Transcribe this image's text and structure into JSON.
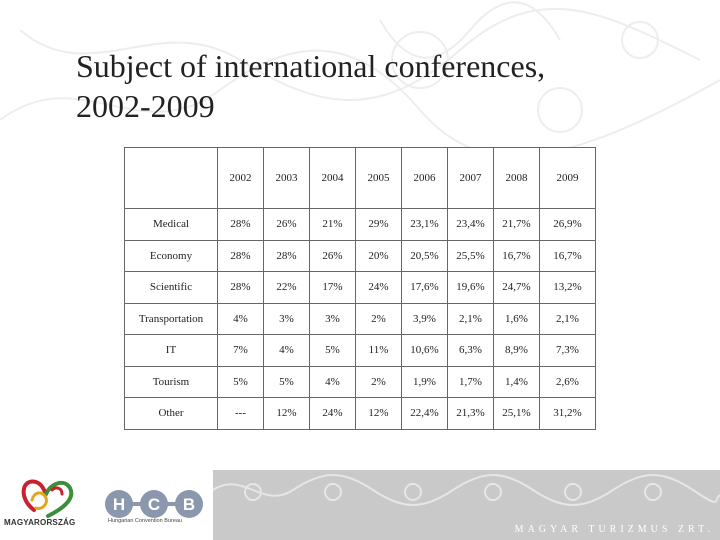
{
  "title_line1": "Subject of international conferences,",
  "title_line2": "2002-2009",
  "table": {
    "years": [
      "2002",
      "2003",
      "2004",
      "2005",
      "2006",
      "2007",
      "2008",
      "2009"
    ],
    "rows": [
      {
        "label": "Medical",
        "values": [
          "28%",
          "26%",
          "21%",
          "29%",
          "23,1%",
          "23,4%",
          "21,7%",
          "26,9%"
        ]
      },
      {
        "label": "Economy",
        "values": [
          "28%",
          "28%",
          "26%",
          "20%",
          "20,5%",
          "25,5%",
          "16,7%",
          "16,7%"
        ]
      },
      {
        "label": "Scientific",
        "values": [
          "28%",
          "22%",
          "17%",
          "24%",
          "17,6%",
          "19,6%",
          "24,7%",
          "13,2%"
        ]
      },
      {
        "label": "Transportation",
        "values": [
          "4%",
          "3%",
          "3%",
          "2%",
          "3,9%",
          "2,1%",
          "1,6%",
          "2,1%"
        ]
      },
      {
        "label": "IT",
        "values": [
          "7%",
          "4%",
          "5%",
          "11%",
          "10,6%",
          "6,3%",
          "8,9%",
          "7,3%"
        ]
      },
      {
        "label": "Tourism",
        "values": [
          "5%",
          "5%",
          "4%",
          "2%",
          "1,9%",
          "1,7%",
          "1,4%",
          "2,6%"
        ]
      },
      {
        "label": "Other",
        "values": [
          "---",
          "12%",
          "24%",
          "12%",
          "22,4%",
          "21,3%",
          "25,1%",
          "31,2%"
        ]
      }
    ]
  },
  "footer": {
    "logo_magyarorszag": "MAGYARORSZÁG",
    "hcb_letters": [
      "H",
      "C",
      "B"
    ],
    "hcb_subtitle": "Hungarian Convention Bureau",
    "band_text": "MAGYAR TURIZMUS ZRT."
  },
  "colors": {
    "hcb_circle": "#8b97ad",
    "band": "#c9c9c9",
    "logo_red": "#c8202f",
    "logo_green": "#3a8f3a"
  }
}
